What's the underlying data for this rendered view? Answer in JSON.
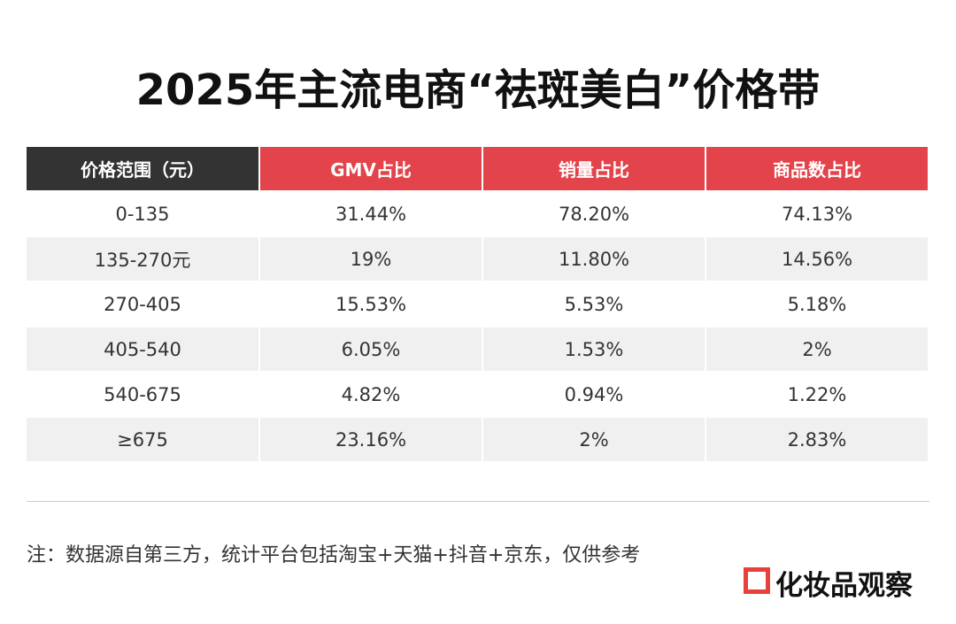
{
  "header": {
    "title": "2025年主流电商“祛斑美白”价格带"
  },
  "table": {
    "columns": [
      "价格范围（元）",
      "GMV占比",
      "销量占比",
      "商品数占比"
    ],
    "rows": [
      [
        "0-135",
        "31.44%",
        "78.20%",
        "74.13%"
      ],
      [
        "135-270元",
        "19%",
        "11.80%",
        "14.56%"
      ],
      [
        "270-405",
        "15.53%",
        "5.53%",
        "5.18%"
      ],
      [
        "405-540",
        "6.05%",
        "1.53%",
        "2%"
      ],
      [
        "540-675",
        "4.82%",
        "0.94%",
        "1.22%"
      ],
      [
        "≥675",
        "23.16%",
        "2%",
        "2.83%"
      ]
    ]
  },
  "footer": {
    "note": "注：数据源自第三方，统计平台包括淘宝+天猫+抖音+京东，仅供参考",
    "brand": "化妆品观察"
  }
}
